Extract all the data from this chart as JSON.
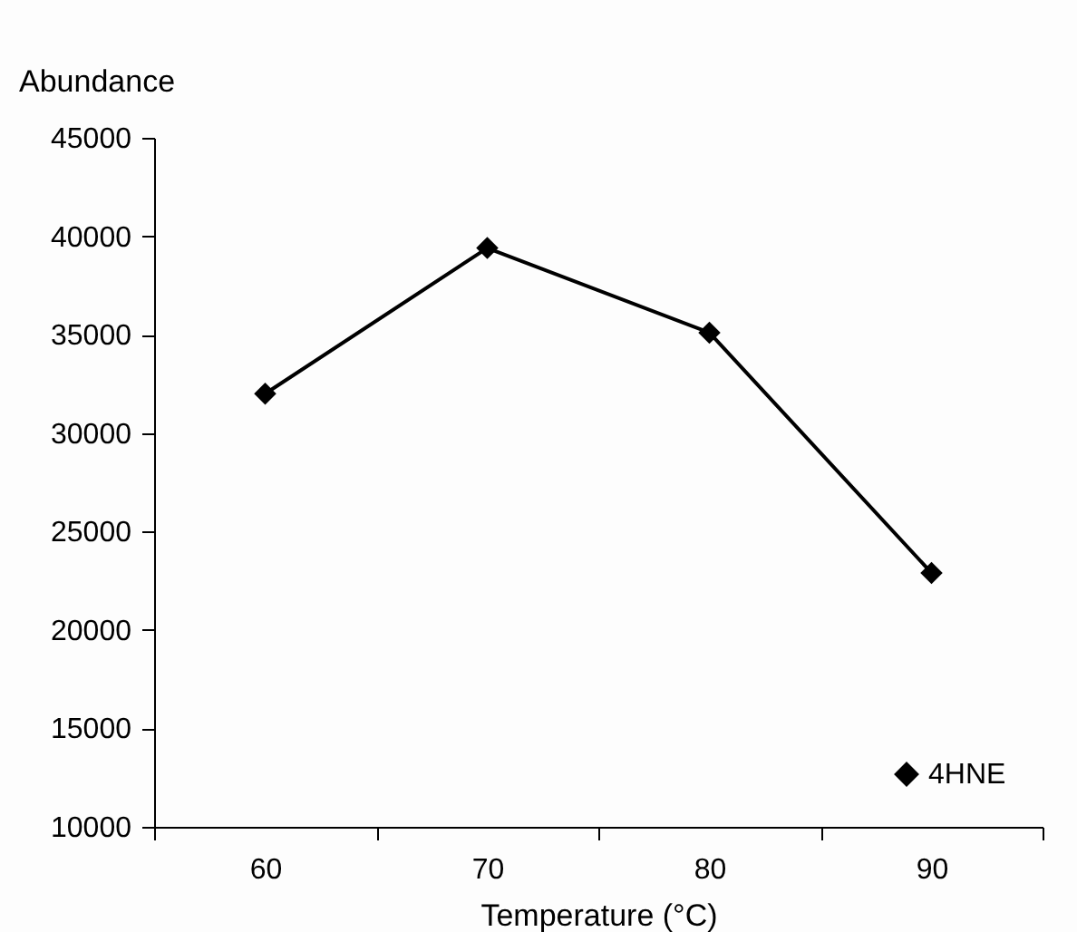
{
  "chart_data": {
    "type": "line",
    "xlabel": "Temperature (°C)",
    "ylabel": "Abundance",
    "categories": [
      "60",
      "70",
      "80",
      "90"
    ],
    "series": [
      {
        "name": "4HNE",
        "color": "#000000",
        "values": [
          32000,
          39400,
          35100,
          22900
        ]
      }
    ],
    "ylim": [
      10000,
      45000
    ],
    "yticks": [
      10000,
      15000,
      20000,
      25000,
      30000,
      35000,
      40000,
      45000
    ],
    "grid": false,
    "legend": "bottom right",
    "marker": "diamond",
    "line_style": "solid"
  }
}
